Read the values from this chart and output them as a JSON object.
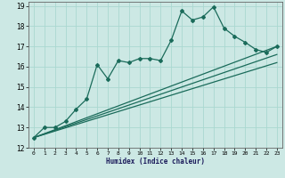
{
  "xlabel": "Humidex (Indice chaleur)",
  "ylabel": "",
  "bg_color": "#cce8e4",
  "grid_color": "#aad8d0",
  "line_color": "#1a6b5a",
  "xlim": [
    -0.5,
    23.5
  ],
  "ylim": [
    12,
    19.2
  ],
  "xticks": [
    0,
    1,
    2,
    3,
    4,
    5,
    6,
    7,
    8,
    9,
    10,
    11,
    12,
    13,
    14,
    15,
    16,
    17,
    18,
    19,
    20,
    21,
    22,
    23
  ],
  "yticks": [
    12,
    13,
    14,
    15,
    16,
    17,
    18,
    19
  ],
  "series1_x": [
    0,
    1,
    2,
    3,
    4,
    5,
    6,
    7,
    8,
    9,
    10,
    11,
    12,
    13,
    14,
    15,
    16,
    17,
    18,
    19,
    20,
    21,
    22,
    23
  ],
  "series1_y": [
    12.5,
    13.0,
    13.0,
    13.3,
    13.9,
    14.4,
    16.1,
    15.4,
    16.3,
    16.2,
    16.4,
    16.4,
    16.3,
    17.3,
    18.75,
    18.3,
    18.45,
    18.95,
    17.9,
    17.5,
    17.2,
    16.85,
    16.7,
    17.0
  ],
  "series2_x": [
    0,
    23
  ],
  "series2_y": [
    12.5,
    17.0
  ],
  "series3_x": [
    0,
    23
  ],
  "series3_y": [
    12.5,
    16.6
  ],
  "series4_x": [
    0,
    23
  ],
  "series4_y": [
    12.5,
    16.2
  ]
}
